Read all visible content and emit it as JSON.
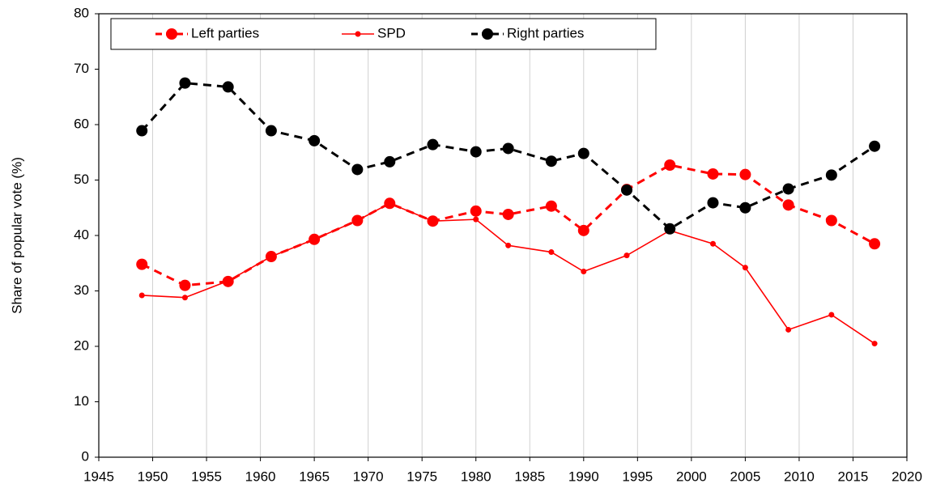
{
  "chart_data": {
    "type": "line",
    "y_label": "Share of popular vote (%)",
    "x": [
      1949,
      1953,
      1957,
      1961,
      1965,
      1969,
      1972,
      1976,
      1980,
      1983,
      1987,
      1990,
      1994,
      1998,
      2002,
      2005,
      2009,
      2013,
      2017
    ],
    "series": [
      {
        "name": "Left parties",
        "color": "#ff0000",
        "linestyle": "dashed",
        "marker": "large",
        "values": [
          34.8,
          31.0,
          31.7,
          36.2,
          39.3,
          42.7,
          45.8,
          42.6,
          44.4,
          43.8,
          45.3,
          40.9,
          48.3,
          52.7,
          51.1,
          51.0,
          45.5,
          42.7,
          38.5
        ]
      },
      {
        "name": "SPD",
        "color": "#ff0000",
        "linestyle": "solid",
        "marker": "small",
        "values": [
          29.2,
          28.8,
          31.8,
          36.2,
          39.3,
          42.7,
          45.8,
          42.6,
          42.9,
          38.2,
          37.0,
          33.5,
          36.4,
          40.9,
          38.5,
          34.2,
          23.0,
          25.7,
          20.5
        ]
      },
      {
        "name": "Right parties",
        "color": "#000000",
        "linestyle": "dashed",
        "marker": "large",
        "values": [
          58.9,
          67.5,
          66.8,
          58.9,
          57.1,
          51.9,
          53.3,
          56.4,
          55.1,
          55.7,
          53.4,
          54.8,
          48.2,
          41.2,
          45.9,
          45.0,
          48.4,
          50.9,
          56.1
        ]
      }
    ],
    "xlim": [
      1945,
      2020
    ],
    "xticks": [
      1945,
      1950,
      1955,
      1960,
      1965,
      1970,
      1975,
      1980,
      1985,
      1990,
      1995,
      2000,
      2005,
      2010,
      2015,
      2020
    ],
    "ylim": [
      0,
      80
    ],
    "yticks": [
      0,
      10,
      20,
      30,
      40,
      50,
      60,
      70,
      80
    ],
    "grid": "x",
    "legend": "upper left"
  }
}
